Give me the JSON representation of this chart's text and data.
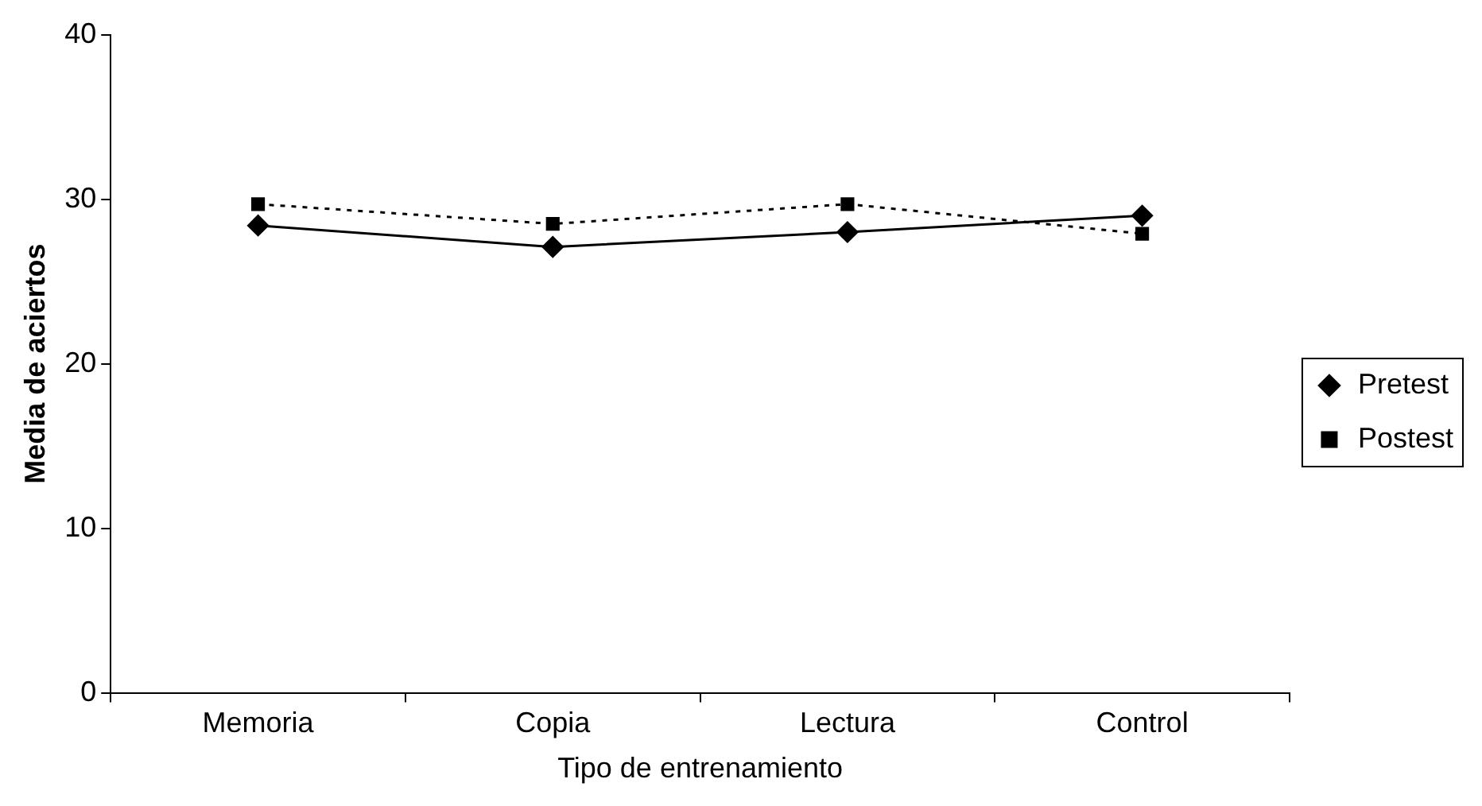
{
  "chart_data": {
    "type": "line",
    "xlabel": "Tipo de entrenamiento",
    "ylabel": "Media de aciertos",
    "categories": [
      "Memoria",
      "Copia",
      "Lectura",
      "Control"
    ],
    "series": [
      {
        "name": "Pretest",
        "color": "#000000",
        "values": [
          28.4,
          27.1,
          28.0,
          29.0
        ],
        "marker": "diamond",
        "line_style": "solid"
      },
      {
        "name": "Postest",
        "color": "#000000",
        "values": [
          29.7,
          28.5,
          29.7,
          27.9
        ],
        "marker": "square",
        "line_style": "dotted"
      }
    ],
    "ylim": [
      0,
      40
    ],
    "yticks": [
      0,
      10,
      20,
      30,
      40
    ],
    "grid": false,
    "legend": "right"
  }
}
